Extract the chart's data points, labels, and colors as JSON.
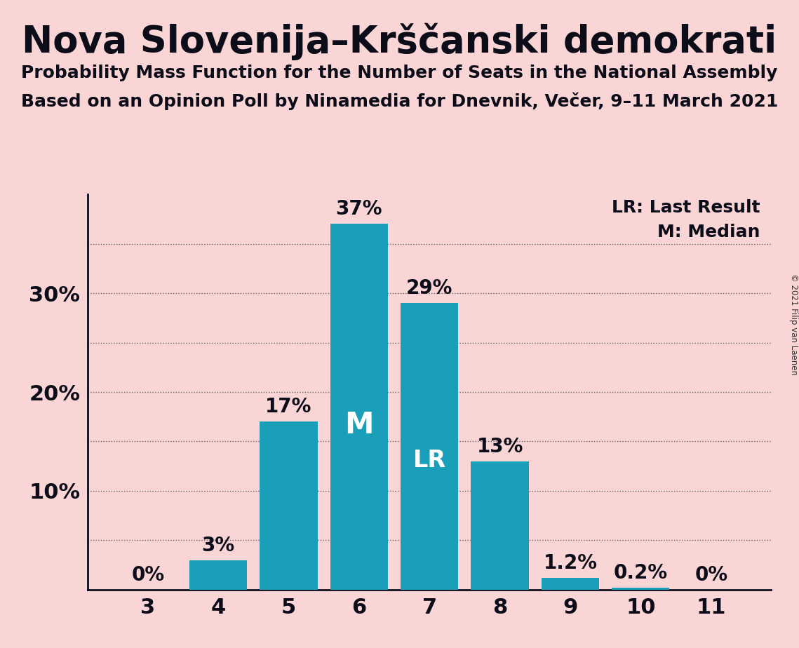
{
  "title": "Nova Slovenija–Krščanski demokrati",
  "subtitle1": "Probability Mass Function for the Number of Seats in the National Assembly",
  "subtitle2": "Based on an Opinion Poll by Ninamedia for Dnevnik, Večer, 9–11 March 2021",
  "copyright": "© 2021 Filip van Laenen",
  "categories": [
    3,
    4,
    5,
    6,
    7,
    8,
    9,
    10,
    11
  ],
  "values": [
    0.0,
    3.0,
    17.0,
    37.0,
    29.0,
    13.0,
    1.2,
    0.2,
    0.0
  ],
  "bar_color": "#1a9fba",
  "background_color": "#f9d5d5",
  "bar_labels": [
    "0%",
    "3%",
    "17%",
    "37%",
    "29%",
    "13%",
    "1.2%",
    "0.2%",
    "0%"
  ],
  "median_bar": 6,
  "lr_bar": 7,
  "major_ytick_labels": [
    "10%",
    "20%",
    "30%"
  ],
  "major_ytick_values": [
    10,
    20,
    30
  ],
  "ylim": [
    0,
    40
  ],
  "legend_lr": "LR: Last Result",
  "legend_m": "M: Median",
  "bar_label_fontsize": 20,
  "title_fontsize": 38,
  "subtitle_fontsize": 18,
  "axis_label_fontsize": 22,
  "legend_fontsize": 18,
  "m_label_fontsize": 30,
  "lr_label_fontsize": 24
}
